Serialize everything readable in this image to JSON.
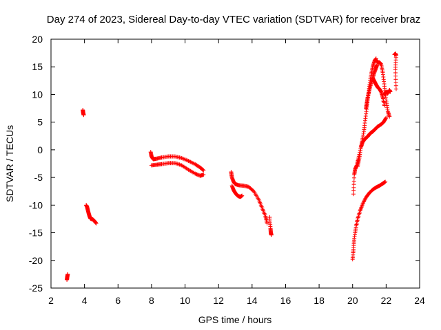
{
  "chart_data": {
    "type": "scatter",
    "title": "Day 274 of 2023, Sidereal Day-to-day VTEC variation (SDTVAR) for receiver braz",
    "xlabel": "GPS time / hours",
    "ylabel": "SDTVAR / TECUs",
    "xlim": [
      2,
      24
    ],
    "ylim": [
      -25,
      20
    ],
    "xticks": [
      2,
      4,
      6,
      8,
      10,
      12,
      14,
      16,
      18,
      20,
      22,
      24
    ],
    "yticks": [
      -25,
      -20,
      -15,
      -10,
      -5,
      0,
      5,
      10,
      15,
      20
    ],
    "xtick_labels": [
      "2",
      "4",
      "6",
      "8",
      "10",
      "12",
      "14",
      "16",
      "18",
      "20",
      "22",
      "24"
    ],
    "ytick_labels": [
      "-25",
      "-20",
      "-15",
      "-10",
      "-5",
      "0",
      "5",
      "10",
      "15",
      "20"
    ],
    "marker": "+",
    "color": "#ff0000",
    "series": [
      {
        "name": "s1",
        "x": [
          2.95,
          2.97,
          3.0
        ],
        "y": [
          -23.5,
          -23.0,
          -22.5
        ]
      },
      {
        "name": "s2",
        "x": [
          3.9,
          3.92,
          3.95
        ],
        "y": [
          7.2,
          6.7,
          6.3
        ]
      },
      {
        "name": "s3",
        "x": [
          4.1,
          4.15,
          4.2,
          4.25,
          4.3,
          4.35,
          4.4,
          4.5,
          4.6,
          4.7
        ],
        "y": [
          -10.0,
          -10.3,
          -10.9,
          -11.5,
          -12.0,
          -12.4,
          -12.5,
          -12.6,
          -12.9,
          -13.3
        ]
      },
      {
        "name": "s4",
        "x": [
          7.95,
          8.0,
          8.1,
          8.3,
          8.6,
          9.0,
          9.4,
          9.8,
          10.2,
          10.6,
          10.9,
          11.1
        ],
        "y": [
          -0.4,
          -1.2,
          -1.7,
          -1.6,
          -1.4,
          -1.2,
          -1.2,
          -1.5,
          -2.0,
          -2.6,
          -3.2,
          -3.7
        ]
      },
      {
        "name": "s5",
        "x": [
          8.0,
          8.3,
          8.6,
          9.0,
          9.4,
          9.8,
          10.2,
          10.6,
          10.9,
          11.1
        ],
        "y": [
          -2.8,
          -2.7,
          -2.6,
          -2.4,
          -2.4,
          -2.8,
          -3.6,
          -4.3,
          -4.7,
          -4.5
        ]
      },
      {
        "name": "s6",
        "x": [
          12.75,
          12.8,
          12.9,
          13.0,
          13.2,
          13.5,
          13.8,
          14.1,
          14.4,
          14.6,
          14.8,
          14.9
        ],
        "y": [
          -4.0,
          -5.0,
          -5.8,
          -6.2,
          -6.4,
          -6.5,
          -6.7,
          -7.5,
          -9.0,
          -10.5,
          -12.0,
          -13.3
        ]
      },
      {
        "name": "s7",
        "x": [
          12.8,
          12.9,
          13.0,
          13.1,
          13.2,
          13.3,
          13.4
        ],
        "y": [
          -6.5,
          -7.3,
          -7.8,
          -8.2,
          -8.4,
          -8.5,
          -8.3
        ]
      },
      {
        "name": "s8",
        "x": [
          15.05,
          15.1,
          15.12,
          15.15
        ],
        "y": [
          -12.2,
          -14.2,
          -15.0,
          -15.4
        ]
      },
      {
        "name": "s9",
        "x": [
          20.05,
          20.1,
          20.15,
          20.25,
          20.35,
          20.5,
          20.6,
          20.75,
          20.9,
          21.0,
          21.1,
          21.2,
          21.3,
          21.4,
          21.5,
          21.7,
          21.85,
          22.0
        ],
        "y": [
          -8.0,
          -4.5,
          -3.5,
          -2.8,
          -1.5,
          0.5,
          1.4,
          2.0,
          2.4,
          2.8,
          3.1,
          3.3,
          3.6,
          3.9,
          4.2,
          4.6,
          5.0,
          5.8
        ]
      },
      {
        "name": "s10",
        "x": [
          20.0,
          20.05,
          20.1,
          20.2,
          20.3,
          20.45,
          20.6,
          20.8,
          21.0,
          21.2,
          21.4,
          21.6,
          21.8,
          21.95
        ],
        "y": [
          -19.8,
          -18.0,
          -16.0,
          -14.0,
          -12.5,
          -11.0,
          -9.8,
          -8.6,
          -7.8,
          -7.2,
          -6.8,
          -6.5,
          -6.1,
          -5.8
        ]
      },
      {
        "name": "s11",
        "x": [
          20.3,
          20.4,
          20.5,
          20.6,
          20.7,
          20.8,
          20.9,
          21.0,
          21.1,
          21.2,
          21.3,
          21.4
        ],
        "y": [
          -3.0,
          -1.5,
          0.5,
          2.0,
          4.0,
          6.5,
          9.0,
          11.5,
          13.5,
          15.0,
          16.0,
          16.5
        ]
      },
      {
        "name": "s12",
        "x": [
          20.8,
          20.85,
          20.9,
          21.0,
          21.1,
          21.2,
          21.3,
          21.4,
          21.45
        ],
        "y": [
          7.5,
          8.5,
          9.5,
          10.8,
          12.0,
          13.0,
          14.0,
          14.8,
          15.3
        ]
      },
      {
        "name": "s13",
        "x": [
          21.4,
          21.5,
          21.6,
          21.7,
          21.8,
          21.9,
          22.0,
          22.1,
          22.2
        ],
        "y": [
          16.2,
          15.8,
          15.8,
          15.5,
          14.0,
          11.5,
          9.0,
          7.0,
          6.0
        ]
      },
      {
        "name": "s14",
        "x": [
          21.2,
          21.3,
          21.4,
          21.5,
          21.6,
          21.7,
          21.8,
          21.9
        ],
        "y": [
          13.0,
          12.4,
          11.8,
          11.3,
          11.0,
          10.5,
          9.5,
          8.0
        ]
      },
      {
        "name": "s15",
        "x": [
          21.9,
          22.0,
          22.1,
          22.2,
          22.25
        ],
        "y": [
          10.0,
          10.5,
          10.2,
          10.8,
          10.5
        ]
      },
      {
        "name": "s16",
        "x": [
          22.5,
          22.55,
          22.6,
          22.55,
          22.6
        ],
        "y": [
          17.2,
          17.4,
          17.1,
          14.5,
          11.0
        ]
      }
    ]
  }
}
